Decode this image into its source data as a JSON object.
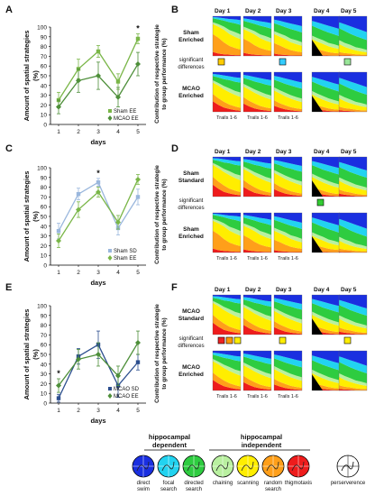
{
  "panel_letters": {
    "A": "A",
    "B": "B",
    "C": "C",
    "D": "D",
    "E": "E",
    "F": "F"
  },
  "line_axes": {
    "ylabel": "Amount of spatial strategies (%)",
    "xlabel": "days",
    "yticks": [
      "0",
      "10",
      "20",
      "30",
      "40",
      "50",
      "60",
      "70",
      "80",
      "90",
      "100"
    ],
    "xticks": [
      "1",
      "2",
      "3",
      "4",
      "5"
    ]
  },
  "chart_data": [
    {
      "type": "line",
      "panel": "A",
      "ylim": [
        0,
        100
      ],
      "x": [
        1,
        2,
        3,
        4,
        5
      ],
      "series": [
        {
          "name": "Sham EE",
          "color": "#7ab648",
          "values": [
            25,
            57,
            75,
            44,
            88
          ],
          "err": [
            8,
            10,
            6,
            8,
            5
          ]
        },
        {
          "name": "MCAO EE",
          "color": "#4e8f3a",
          "values": [
            18,
            45,
            50,
            28,
            62
          ],
          "err": [
            7,
            12,
            14,
            10,
            12
          ]
        }
      ],
      "significance": [
        {
          "day": 5,
          "mark": "*"
        }
      ]
    },
    {
      "type": "line",
      "panel": "C",
      "ylim": [
        0,
        100
      ],
      "x": [
        1,
        2,
        3,
        4,
        5
      ],
      "series": [
        {
          "name": "Sham SD",
          "color": "#9ab7dd",
          "values": [
            35,
            73,
            85,
            38,
            70
          ],
          "err": [
            8,
            6,
            4,
            7,
            8
          ]
        },
        {
          "name": "Sham EE",
          "color": "#7ab648",
          "values": [
            25,
            57,
            75,
            44,
            88
          ],
          "err": [
            7,
            8,
            5,
            7,
            5
          ]
        }
      ],
      "significance": [
        {
          "day": 3,
          "mark": "*"
        }
      ]
    },
    {
      "type": "line",
      "panel": "E",
      "ylim": [
        0,
        100
      ],
      "x": [
        1,
        2,
        3,
        4,
        5
      ],
      "series": [
        {
          "name": "MCAO SD",
          "color": "#2d4f8f",
          "values": [
            5,
            48,
            60,
            18,
            42
          ],
          "err": [
            4,
            8,
            14,
            12,
            8
          ]
        },
        {
          "name": "MCAO EE",
          "color": "#4e8f3a",
          "values": [
            18,
            45,
            50,
            28,
            62
          ],
          "err": [
            7,
            10,
            12,
            10,
            12
          ]
        }
      ],
      "significance": [
        {
          "day": 1,
          "mark": "*"
        }
      ]
    },
    {
      "type": "area",
      "panel": "B",
      "rows": [
        "Sham Enriched",
        "MCAO Enriched"
      ],
      "days": [
        "Day 1",
        "Day 2",
        "Day 3",
        "Day 4",
        "Day 5"
      ],
      "significant_differences": {
        "label": "significant differences",
        "markers": [
          {
            "day": 1,
            "color": "#ffcc00"
          },
          {
            "day": 3,
            "color": "#33ccff"
          },
          {
            "day": 5,
            "color": "#99e699"
          }
        ]
      }
    },
    {
      "type": "area",
      "panel": "D",
      "rows": [
        "Sham Standard",
        "Sham Enriched"
      ],
      "days": [
        "Day 1",
        "Day 2",
        "Day 3",
        "Day 4",
        "Day 5"
      ],
      "significant_differences": {
        "label": "significant differences",
        "markers": [
          {
            "day": 4,
            "color": "#33cc33"
          }
        ]
      }
    },
    {
      "type": "area",
      "panel": "F",
      "rows": [
        "MCAO Standard",
        "MCAO Enriched"
      ],
      "days": [
        "Day 1",
        "Day 2",
        "Day 3",
        "Day 4",
        "Day 5"
      ],
      "significant_differences": {
        "label": "significant differences",
        "markers": [
          {
            "day": 1,
            "color": "#ee2222"
          },
          {
            "day": 1,
            "color": "#ff9900"
          },
          {
            "day": 1,
            "color": "#ffee00"
          },
          {
            "day": 3,
            "color": "#ffee00"
          },
          {
            "day": 5,
            "color": "#ffee00"
          }
        ]
      }
    }
  ],
  "area_axes": {
    "ylabel": "Contribution of respective strategie to group performance (%)",
    "trails_label": "Trails 1-6"
  },
  "strategy_colors": {
    "direct_swim": "#1a2fe0",
    "focal_search": "#22d3f0",
    "directed_search": "#2ecc40",
    "chaining": "#b9f0a0",
    "scanning": "#ffee00",
    "random_search": "#ff9f1a",
    "thigmotaxis": "#ee1c1c",
    "perseverance": "#000000"
  },
  "legend": {
    "group_dependent": "hippocampal dependent",
    "group_independent": "hippocampal independent",
    "items": [
      {
        "key": "direct_swim",
        "line1": "direct",
        "line2": "swim"
      },
      {
        "key": "focal_search",
        "line1": "focal",
        "line2": "search"
      },
      {
        "key": "directed_search",
        "line1": "directed",
        "line2": "search"
      },
      {
        "key": "chaining",
        "line1": "chaining",
        "line2": ""
      },
      {
        "key": "scanning",
        "line1": "scanning",
        "line2": ""
      },
      {
        "key": "random_search",
        "line1": "random",
        "line2": "search"
      },
      {
        "key": "thigmotaxis",
        "line1": "thigmotaxis",
        "line2": ""
      },
      {
        "key": "perseverance",
        "line1": "perserverence",
        "line2": ""
      }
    ]
  }
}
